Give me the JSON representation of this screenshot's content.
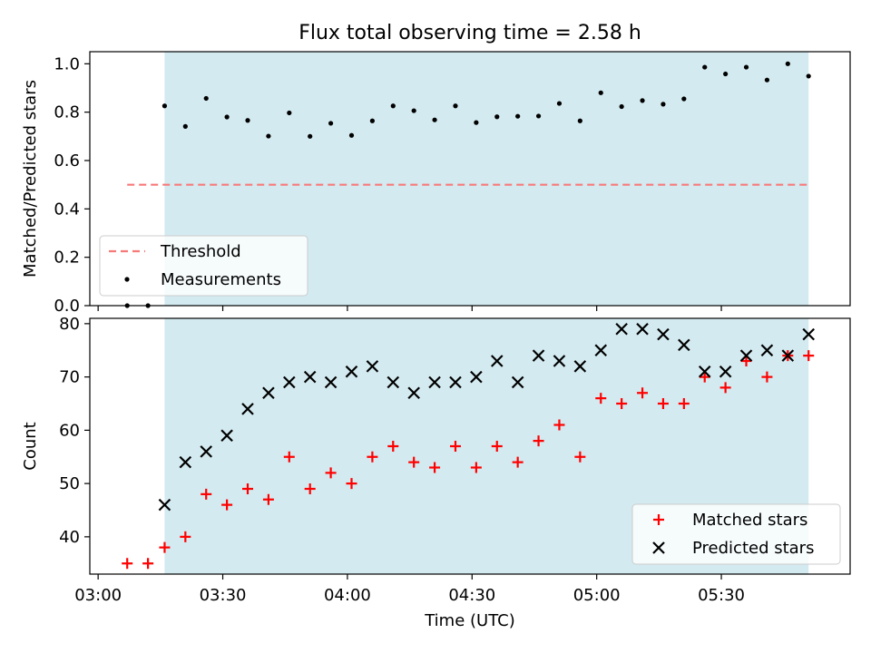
{
  "title": "Flux total observing time = 2.58 h",
  "chart_data": [
    {
      "type": "scatter",
      "panel": "top",
      "xlabel": "",
      "ylabel": "Matched/Predicted stars",
      "ylim": [
        0,
        1.05
      ],
      "yticks": [
        0.0,
        0.2,
        0.4,
        0.6,
        0.8,
        1.0
      ],
      "ytick_labels": [
        "0.0",
        "0.2",
        "0.4",
        "0.6",
        "0.8",
        "1.0"
      ],
      "xlim": [
        "02:58",
        "06:01"
      ],
      "xticks": [
        "03:00",
        "03:30",
        "04:00",
        "04:30",
        "05:00",
        "05:30"
      ],
      "shaded_region": [
        "03:16",
        "05:51"
      ],
      "shaded_color": "#d3eaf0",
      "legend_position": "lower left",
      "series": [
        {
          "name": "Threshold",
          "style": "dashed-line",
          "color": "#f77a7a",
          "x": [
            "03:07",
            "05:51"
          ],
          "y": [
            0.5,
            0.5
          ]
        },
        {
          "name": "Measurements",
          "style": "dot",
          "color": "#000000",
          "x": [
            "03:07",
            "03:12",
            "03:16",
            "03:21",
            "03:26",
            "03:31",
            "03:36",
            "03:41",
            "03:46",
            "03:51",
            "03:56",
            "04:01",
            "04:06",
            "04:11",
            "04:16",
            "04:21",
            "04:26",
            "04:31",
            "04:36",
            "04:41",
            "04:46",
            "04:51",
            "04:56",
            "05:01",
            "05:06",
            "05:11",
            "05:16",
            "05:21",
            "05:26",
            "05:31",
            "05:36",
            "05:41",
            "05:46",
            "05:51"
          ],
          "y": [
            0.0,
            0.0,
            0.826,
            0.741,
            0.857,
            0.78,
            0.766,
            0.701,
            0.797,
            0.7,
            0.754,
            0.704,
            0.764,
            0.826,
            0.806,
            0.768,
            0.826,
            0.757,
            0.781,
            0.783,
            0.784,
            0.836,
            0.764,
            0.88,
            0.823,
            0.848,
            0.833,
            0.855,
            0.986,
            0.958,
            0.986,
            0.933,
            1.0,
            0.949
          ]
        }
      ]
    },
    {
      "type": "scatter",
      "panel": "bottom",
      "xlabel": "Time (UTC)",
      "ylabel": "Count",
      "ylim": [
        33,
        81
      ],
      "yticks": [
        40,
        50,
        60,
        70,
        80
      ],
      "ytick_labels": [
        "40",
        "50",
        "60",
        "70",
        "80"
      ],
      "xlim": [
        "02:58",
        "06:01"
      ],
      "xticks": [
        "03:00",
        "03:30",
        "04:00",
        "04:30",
        "05:00",
        "05:30"
      ],
      "xtick_labels": [
        "03:00",
        "03:30",
        "04:00",
        "04:30",
        "05:00",
        "05:30"
      ],
      "shaded_region": [
        "03:16",
        "05:51"
      ],
      "shaded_color": "#d3eaf0",
      "legend_position": "lower right",
      "series": [
        {
          "name": "Matched stars",
          "marker": "plus",
          "color": "#ff0000",
          "x": [
            "03:07",
            "03:12",
            "03:16",
            "03:21",
            "03:26",
            "03:31",
            "03:36",
            "03:41",
            "03:46",
            "03:51",
            "03:56",
            "04:01",
            "04:06",
            "04:11",
            "04:16",
            "04:21",
            "04:26",
            "04:31",
            "04:36",
            "04:41",
            "04:46",
            "04:51",
            "04:56",
            "05:01",
            "05:06",
            "05:11",
            "05:16",
            "05:21",
            "05:26",
            "05:31",
            "05:36",
            "05:41",
            "05:46",
            "05:51"
          ],
          "y": [
            35,
            35,
            38,
            40,
            48,
            46,
            49,
            47,
            55,
            49,
            52,
            50,
            55,
            57,
            54,
            53,
            57,
            53,
            57,
            54,
            58,
            61,
            55,
            66,
            65,
            67,
            65,
            65,
            70,
            68,
            73,
            70,
            74,
            74
          ]
        },
        {
          "name": "Predicted stars",
          "marker": "x",
          "color": "#000000",
          "x": [
            "03:16",
            "03:21",
            "03:26",
            "03:31",
            "03:36",
            "03:41",
            "03:46",
            "03:51",
            "03:56",
            "04:01",
            "04:06",
            "04:11",
            "04:16",
            "04:21",
            "04:26",
            "04:31",
            "04:36",
            "04:41",
            "04:46",
            "04:51",
            "04:56",
            "05:01",
            "05:06",
            "05:11",
            "05:16",
            "05:21",
            "05:26",
            "05:31",
            "05:36",
            "05:41",
            "05:46",
            "05:51"
          ],
          "y": [
            46,
            54,
            56,
            59,
            64,
            67,
            69,
            70,
            69,
            71,
            72,
            69,
            67,
            69,
            69,
            70,
            73,
            69,
            74,
            73,
            72,
            75,
            79,
            79,
            78,
            76,
            71,
            71,
            74,
            75,
            74,
            78
          ]
        }
      ]
    }
  ]
}
